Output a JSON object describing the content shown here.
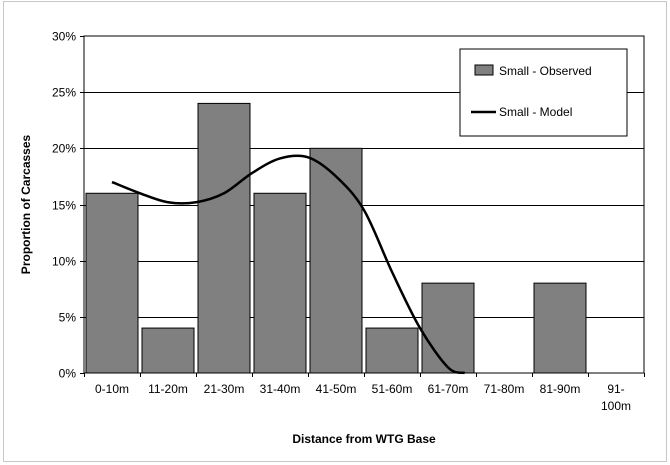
{
  "chart_data": {
    "type": "bar",
    "title": "",
    "xlabel": "Distance from WTG Base",
    "ylabel": "Proportion of Carcasses",
    "ylim": [
      0,
      30
    ],
    "yticks": [
      "0%",
      "5%",
      "10%",
      "15%",
      "20%",
      "25%",
      "30%"
    ],
    "grid": "horizontal",
    "legend_position": "top-right",
    "categories": [
      [
        "0-10m"
      ],
      [
        "11-20m"
      ],
      [
        "21-30m"
      ],
      [
        "31-40m"
      ],
      [
        "41-50m"
      ],
      [
        "51-60m"
      ],
      [
        "61-70m"
      ],
      [
        "71-80m"
      ],
      [
        "81-90m"
      ],
      [
        "91-",
        "100m"
      ]
    ],
    "series": [
      {
        "name": "Small - Observed",
        "type": "bar",
        "color": "#808080",
        "values": [
          16,
          4,
          24,
          16,
          20,
          4,
          8,
          0,
          8,
          0
        ]
      },
      {
        "name": "Small - Model",
        "type": "line",
        "color": "#000000",
        "x": [
          0,
          0.5,
          1,
          1.5,
          2,
          2.5,
          3,
          3.5,
          4,
          4.5,
          5,
          5.5,
          6,
          6.3
        ],
        "values": [
          17,
          16,
          15.2,
          15.2,
          16,
          17.8,
          19.1,
          19.2,
          17.5,
          14.5,
          9,
          4,
          0.5,
          0
        ]
      }
    ]
  }
}
